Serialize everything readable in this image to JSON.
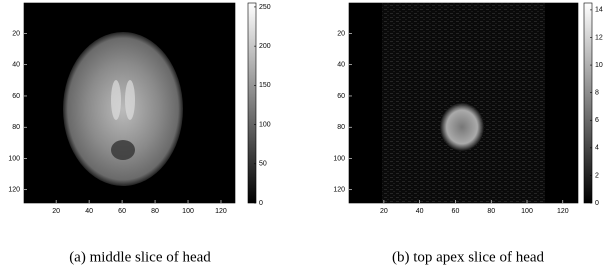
{
  "panels": [
    {
      "image_xlim": [
        0.5,
        128.5
      ],
      "image_ylim": [
        0.5,
        128.5
      ],
      "xticks": [
        20,
        40,
        60,
        80,
        100,
        120
      ],
      "yticks": [
        20,
        40,
        60,
        80,
        100,
        120
      ],
      "colorbar_lim": [
        0,
        255
      ],
      "colorbar_ticks": [
        0,
        50,
        100,
        150,
        200,
        250
      ],
      "caption": "(a) middle slice of head"
    },
    {
      "image_xlim": [
        0.5,
        128.5
      ],
      "image_ylim": [
        0.5,
        128.5
      ],
      "xticks": [
        20,
        40,
        60,
        80,
        100,
        120
      ],
      "yticks": [
        20,
        40,
        60,
        80,
        100,
        120
      ],
      "colorbar_lim": [
        0,
        14.5
      ],
      "colorbar_ticks": [
        0,
        2,
        4,
        6,
        8,
        10,
        12,
        14
      ],
      "caption": "(b) top apex slice of head"
    }
  ]
}
